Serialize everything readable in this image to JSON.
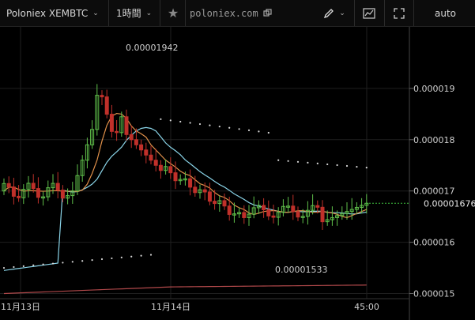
{
  "toolbar": {
    "symbol": "Poloniex XEMBTC",
    "interval": "1時間",
    "site": "poloniex.com",
    "scale_mode": "auto"
  },
  "colors": {
    "up": "#5fbf4a",
    "down": "#c0302a",
    "ma_short": "#e0904a",
    "ma_mid": "#8ad4e8",
    "ma_long": "#b0484a",
    "psar": "#d8d8d8",
    "last_price": "#3fbf3f"
  },
  "chart_data": {
    "type": "candlestick",
    "x_ticks": [
      "11月13日",
      "11月14日",
      "45:00"
    ],
    "y_ticks": [
      "0.000019",
      "0.000018",
      "0.000017",
      "0.000016",
      "0.000015"
    ],
    "ylim": [
      1.49e-05,
      2.02e-05
    ],
    "high_label": "0.00001942",
    "low_label": "0.00001533",
    "last_price_label": "0.00001676",
    "last_price": 1.676e-05,
    "high": 1.942e-05,
    "low": 1.533e-05
  }
}
